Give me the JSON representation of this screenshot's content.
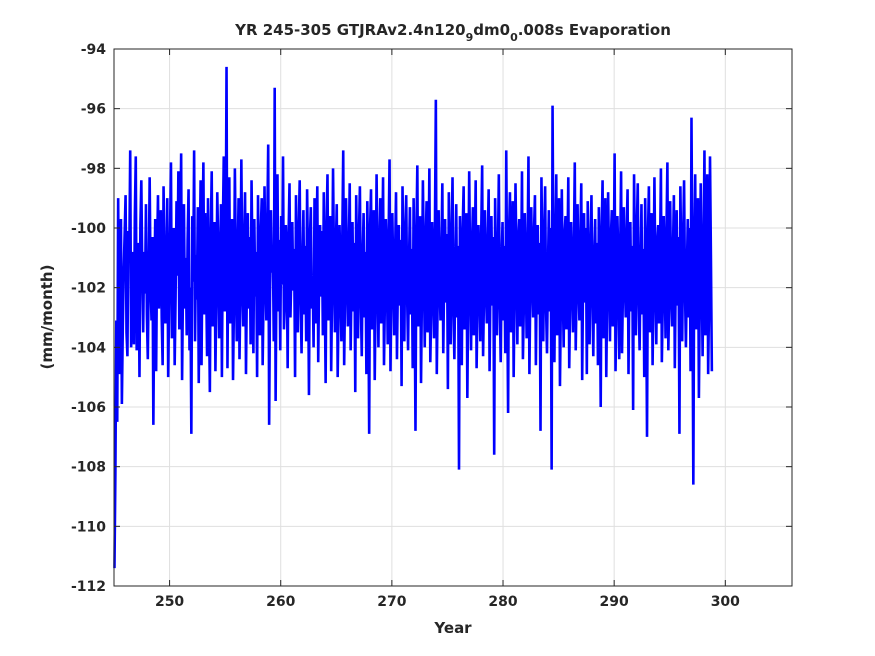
{
  "chart_data": {
    "type": "line",
    "title": {
      "prefix": "YR 245-305 GTJRAv2.4n120",
      "sub1": "9",
      "mid": "dm0",
      "sub2": "0",
      "suffix": ".008s Evaporation"
    },
    "xlabel": "Year",
    "ylabel": "(mm/month)",
    "xlim": [
      245,
      306
    ],
    "ylim": [
      -112,
      -94
    ],
    "xticks": [
      250,
      260,
      270,
      280,
      290,
      300
    ],
    "yticks": [
      -112,
      -110,
      -108,
      -106,
      -104,
      -102,
      -100,
      -98,
      -96,
      -94
    ],
    "grid": true,
    "series": [
      {
        "color": "#0000ff",
        "x_start": 245.0417,
        "x_step": 0.08333,
        "values": [
          -111.4,
          -108.2,
          -103.1,
          -106.5,
          -99.0,
          -104.9,
          -101.2,
          -99.7,
          -105.9,
          -103.3,
          -101.4,
          -100.2,
          -98.9,
          -103.5,
          -104.3,
          -100.1,
          -101.0,
          -97.4,
          -104.0,
          -102.8,
          -100.8,
          -103.9,
          -99.6,
          -97.6,
          -104.1,
          -101.2,
          -100.5,
          -105.0,
          -99.9,
          -98.4,
          -101.4,
          -103.5,
          -100.8,
          -102.2,
          -99.2,
          -102.9,
          -104.4,
          -101.6,
          -98.3,
          -101.8,
          -103.1,
          -100.3,
          -106.6,
          -102.1,
          -99.7,
          -104.8,
          -100.9,
          -98.9,
          -102.7,
          -101.3,
          -99.4,
          -103.0,
          -104.6,
          -98.6,
          -100.8,
          -103.2,
          -101.9,
          -99.0,
          -105.0,
          -102.5,
          -100.2,
          -97.8,
          -103.7,
          -101.4,
          -100.0,
          -104.6,
          -102.3,
          -99.1,
          -101.6,
          -98.1,
          -103.4,
          -100.6,
          -97.5,
          -105.1,
          -101.9,
          -99.2,
          -102.7,
          -101.0,
          -103.6,
          -100.4,
          -98.7,
          -104.1,
          -102.0,
          -106.9,
          -99.6,
          -101.8,
          -97.4,
          -103.8,
          -100.9,
          -102.4,
          -99.3,
          -105.2,
          -101.3,
          -98.4,
          -104.6,
          -100.7,
          -97.8,
          -102.9,
          -99.5,
          -101.8,
          -104.3,
          -99.0,
          -102.5,
          -105.5,
          -100.2,
          -98.1,
          -103.3,
          -101.0,
          -99.8,
          -104.8,
          -102.2,
          -98.8,
          -100.6,
          -103.7,
          -101.4,
          -99.2,
          -105.0,
          -100.1,
          -97.6,
          -102.8,
          -101.3,
          -94.6,
          -104.7,
          -100.3,
          -98.3,
          -103.2,
          -101.5,
          -99.7,
          -105.1,
          -102.6,
          -98.0,
          -100.9,
          -103.8,
          -101.2,
          -99.0,
          -104.4,
          -102.0,
          -97.7,
          -101.6,
          -103.3,
          -100.5,
          -98.8,
          -104.9,
          -101.8,
          -99.5,
          -102.7,
          -100.3,
          -103.9,
          -98.4,
          -101.1,
          -104.2,
          -99.7,
          -102.3,
          -100.8,
          -105.0,
          -98.9,
          -101.9,
          -103.6,
          -100.1,
          -99.0,
          -104.6,
          -102.2,
          -98.6,
          -101.4,
          -103.1,
          -99.9,
          -97.2,
          -106.6,
          -102.0,
          -99.4,
          -101.5,
          -100.6,
          -103.8,
          -95.3,
          -105.8,
          -101.1,
          -98.2,
          -102.8,
          -100.4,
          -104.1,
          -99.6,
          -101.9,
          -97.6,
          -103.4,
          -102.5,
          -99.9,
          -101.0,
          -104.7,
          -100.2,
          -98.5,
          -103.0,
          -101.4,
          -99.8,
          -102.1,
          -100.7,
          -105.0,
          -98.9,
          -101.6,
          -103.5,
          -100.0,
          -98.4,
          -102.4,
          -104.2,
          -101.3,
          -99.4,
          -102.9,
          -100.6,
          -103.8,
          -98.7,
          -101.2,
          -105.6,
          -100.4,
          -99.3,
          -102.7,
          -101.7,
          -104.0,
          -99.0,
          -103.2,
          -100.8,
          -98.6,
          -104.5,
          -101.5,
          -99.9,
          -102.3,
          -100.1,
          -103.6,
          -98.8,
          -101.9,
          -105.2,
          -100.0,
          -98.2,
          -103.1,
          -101.3,
          -99.6,
          -104.8,
          -102.0,
          -98.0,
          -101.1,
          -103.5,
          -100.7,
          -99.2,
          -105.0,
          -102.6,
          -99.9,
          -101.5,
          -103.8,
          -100.3,
          -97.4,
          -104.6,
          -102.1,
          -99.0,
          -101.2,
          -103.3,
          -100.9,
          -98.5,
          -104.1,
          -101.7,
          -99.8,
          -102.8,
          -100.5,
          -105.5,
          -98.9,
          -101.4,
          -103.7,
          -100.2,
          -98.6,
          -102.5,
          -104.3,
          -101.0,
          -99.5,
          -103.0,
          -100.8,
          -104.9,
          -99.1,
          -101.8,
          -106.9,
          -100.0,
          -98.7,
          -103.4,
          -101.6,
          -99.4,
          -105.1,
          -102.2,
          -98.2,
          -101.3,
          -104.0,
          -100.6,
          -99.0,
          -103.2,
          -101.1,
          -98.3,
          -104.6,
          -102.4,
          -99.7,
          -101.0,
          -103.9,
          -100.3,
          -97.7,
          -104.8,
          -102.0,
          -99.5,
          -101.5,
          -103.6,
          -100.9,
          -98.8,
          -104.4,
          -101.8,
          -99.9,
          -102.6,
          -100.4,
          -105.3,
          -98.6,
          -101.3,
          -103.8,
          -100.1,
          -98.9,
          -102.3,
          -104.1,
          -101.2,
          -99.3,
          -102.9,
          -100.7,
          -104.7,
          -99.0,
          -101.9,
          -106.8,
          -100.2,
          -97.9,
          -103.3,
          -101.4,
          -99.6,
          -105.2,
          -102.1,
          -98.4,
          -101.0,
          -104.0,
          -100.5,
          -99.1,
          -103.5,
          -101.6,
          -98.0,
          -104.5,
          -102.7,
          -99.8,
          -101.2,
          -103.7,
          -100.0,
          -95.7,
          -104.9,
          -102.3,
          -99.4,
          -101.7,
          -103.1,
          -100.8,
          -98.5,
          -104.2,
          -101.5,
          -99.7,
          -102.5,
          -100.2,
          -105.4,
          -98.8,
          -101.1,
          -103.9,
          -100.4,
          -98.3,
          -102.8,
          -104.4,
          -101.3,
          -99.2,
          -103.0,
          -100.6,
          -108.1,
          -99.6,
          -101.8,
          -104.6,
          -100.0,
          -98.6,
          -103.4,
          -101.9,
          -99.5,
          -105.7,
          -102.0,
          -98.1,
          -101.4,
          -104.1,
          -100.7,
          -99.3,
          -103.6,
          -101.0,
          -98.4,
          -104.7,
          -102.5,
          -99.9,
          -101.6,
          -103.8,
          -100.1,
          -97.9,
          -104.3,
          -102.2,
          -99.4,
          -101.8,
          -103.2,
          -100.5,
          -98.7,
          -104.8,
          -101.7,
          -99.6,
          -102.6,
          -100.3,
          -107.6,
          -99.0,
          -101.5,
          -103.6,
          -100.9,
          -98.2,
          -102.4,
          -104.5,
          -101.1,
          -99.8,
          -103.1,
          -100.6,
          -104.2,
          -97.4,
          -101.9,
          -106.2,
          -100.2,
          -98.8,
          -103.5,
          -101.3,
          -99.1,
          -105.0,
          -102.1,
          -98.5,
          -101.0,
          -103.9,
          -100.4,
          -99.7,
          -103.3,
          -101.8,
          -98.1,
          -104.4,
          -102.6,
          -99.5,
          -101.2,
          -103.7,
          -100.8,
          -97.6,
          -104.9,
          -102.0,
          -99.3,
          -101.6,
          -103.0,
          -100.1,
          -98.9,
          -104.6,
          -101.4,
          -99.9,
          -102.9,
          -100.5,
          -106.8,
          -98.3,
          -101.0,
          -103.8,
          -100.3,
          -98.6,
          -102.7,
          -104.2,
          -101.5,
          -99.4,
          -102.8,
          -100.0,
          -108.1,
          -95.9,
          -101.7,
          -104.5,
          -100.6,
          -98.2,
          -103.6,
          -101.2,
          -99.0,
          -105.3,
          -102.4,
          -98.7,
          -101.9,
          -104.0,
          -100.2,
          -99.6,
          -103.4,
          -101.1,
          -98.3,
          -104.7,
          -102.3,
          -99.8,
          -101.4,
          -103.5,
          -100.7,
          -97.8,
          -104.1,
          -102.0,
          -99.2,
          -101.8,
          -103.1,
          -100.4,
          -98.5,
          -105.1,
          -101.6,
          -99.5,
          -102.5,
          -100.0,
          -104.9,
          -99.1,
          -101.3,
          -103.9,
          -100.8,
          -98.9,
          -102.2,
          -104.3,
          -101.0,
          -99.7,
          -103.2,
          -100.5,
          -104.6,
          -99.3,
          -101.5,
          -106.0,
          -100.1,
          -98.4,
          -103.7,
          -101.9,
          -99.0,
          -105.0,
          -102.2,
          -98.8,
          -101.2,
          -103.8,
          -100.3,
          -99.4,
          -103.3,
          -101.7,
          -97.5,
          -104.8,
          -102.6,
          -99.6,
          -101.0,
          -104.4,
          -100.9,
          -98.1,
          -104.2,
          -102.1,
          -99.3,
          -101.6,
          -103.0,
          -100.2,
          -98.7,
          -104.9,
          -101.5,
          -99.8,
          -102.8,
          -100.6,
          -106.1,
          -98.2,
          -101.1,
          -103.6,
          -100.0,
          -98.5,
          -102.4,
          -104.1,
          -101.3,
          -99.2,
          -102.9,
          -100.7,
          -105.0,
          -99.0,
          -101.8,
          -107.0,
          -100.3,
          -98.6,
          -103.5,
          -101.4,
          -99.5,
          -104.6,
          -102.0,
          -98.3,
          -101.7,
          -103.9,
          -100.5,
          -99.9,
          -103.2,
          -101.0,
          -98.0,
          -104.5,
          -102.5,
          -99.6,
          -101.3,
          -103.7,
          -100.1,
          -97.8,
          -104.1,
          -102.3,
          -99.1,
          -101.9,
          -103.3,
          -100.8,
          -98.9,
          -104.7,
          -101.6,
          -99.4,
          -102.6,
          -100.3,
          -106.9,
          -98.6,
          -101.2,
          -103.8,
          -100.4,
          -98.4,
          -102.1,
          -104.0,
          -101.5,
          -99.7,
          -103.0,
          -100.0,
          -104.8,
          -96.3,
          -101.9,
          -108.6,
          -100.6,
          -98.2,
          -103.4,
          -101.1,
          -99.0,
          -105.7,
          -102.2,
          -98.5,
          -101.4,
          -104.3,
          -100.9,
          -97.4,
          -103.6,
          -101.8,
          -98.2,
          -104.9,
          -102.4,
          -97.6,
          -101.0,
          -104.8
        ]
      }
    ]
  }
}
